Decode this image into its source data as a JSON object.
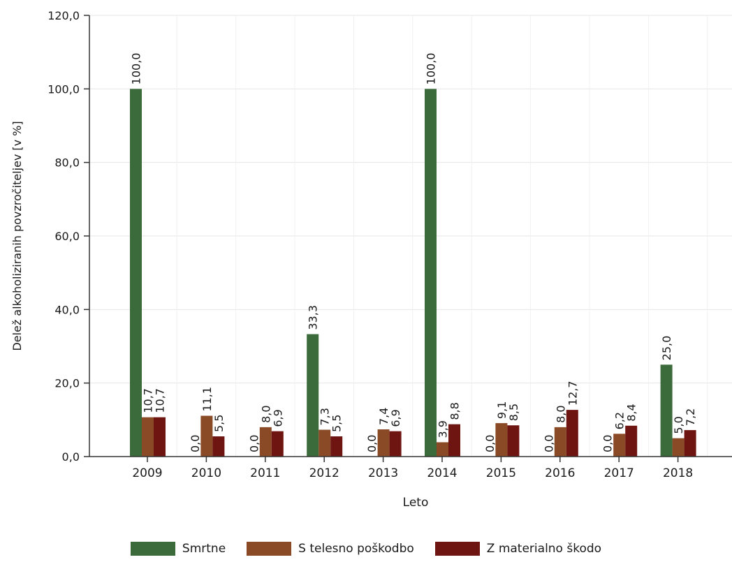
{
  "chart_data": {
    "type": "bar",
    "title": "",
    "xlabel": "Leto",
    "ylabel": "Delež alkoholiziranih povzročiteljev [v %]",
    "ylim": [
      0,
      120
    ],
    "y_ticks": [
      "0,0",
      "20,0",
      "40,0",
      "60,0",
      "80,0",
      "100,0",
      "120,0"
    ],
    "grid": true,
    "legend_position": "bottom",
    "categories": [
      "2009",
      "2010",
      "2011",
      "2012",
      "2013",
      "2014",
      "2015",
      "2016",
      "2017",
      "2018"
    ],
    "series": [
      {
        "name": "Smrtne",
        "color": "#3b6a3b",
        "values": [
          100.0,
          0.0,
          0.0,
          33.3,
          0.0,
          100.0,
          0.0,
          0.0,
          0.0,
          25.0
        ],
        "labels": [
          "100,0",
          "0,0",
          "0,0",
          "33,3",
          "0,0",
          "100,0",
          "0,0",
          "0,0",
          "0,0",
          "25,0"
        ]
      },
      {
        "name": "S telesno poškodbo",
        "color": "#8a4a26",
        "values": [
          10.7,
          11.1,
          8.0,
          7.3,
          7.4,
          3.9,
          9.1,
          8.0,
          6.2,
          5.0
        ],
        "labels": [
          "10,7",
          "11,1",
          "8,0",
          "7,3",
          "7,4",
          "3,9",
          "9,1",
          "8,0",
          "6,2",
          "5,0"
        ]
      },
      {
        "name": "Z materialno škodo",
        "color": "#6e1512",
        "values": [
          10.7,
          5.5,
          6.9,
          5.5,
          6.9,
          8.8,
          8.5,
          12.7,
          8.4,
          7.2
        ],
        "labels": [
          "10,7",
          "5,5",
          "6,9",
          "5,5",
          "6,9",
          "8,8",
          "8,5",
          "12,7",
          "8,4",
          "7,2"
        ]
      }
    ]
  }
}
